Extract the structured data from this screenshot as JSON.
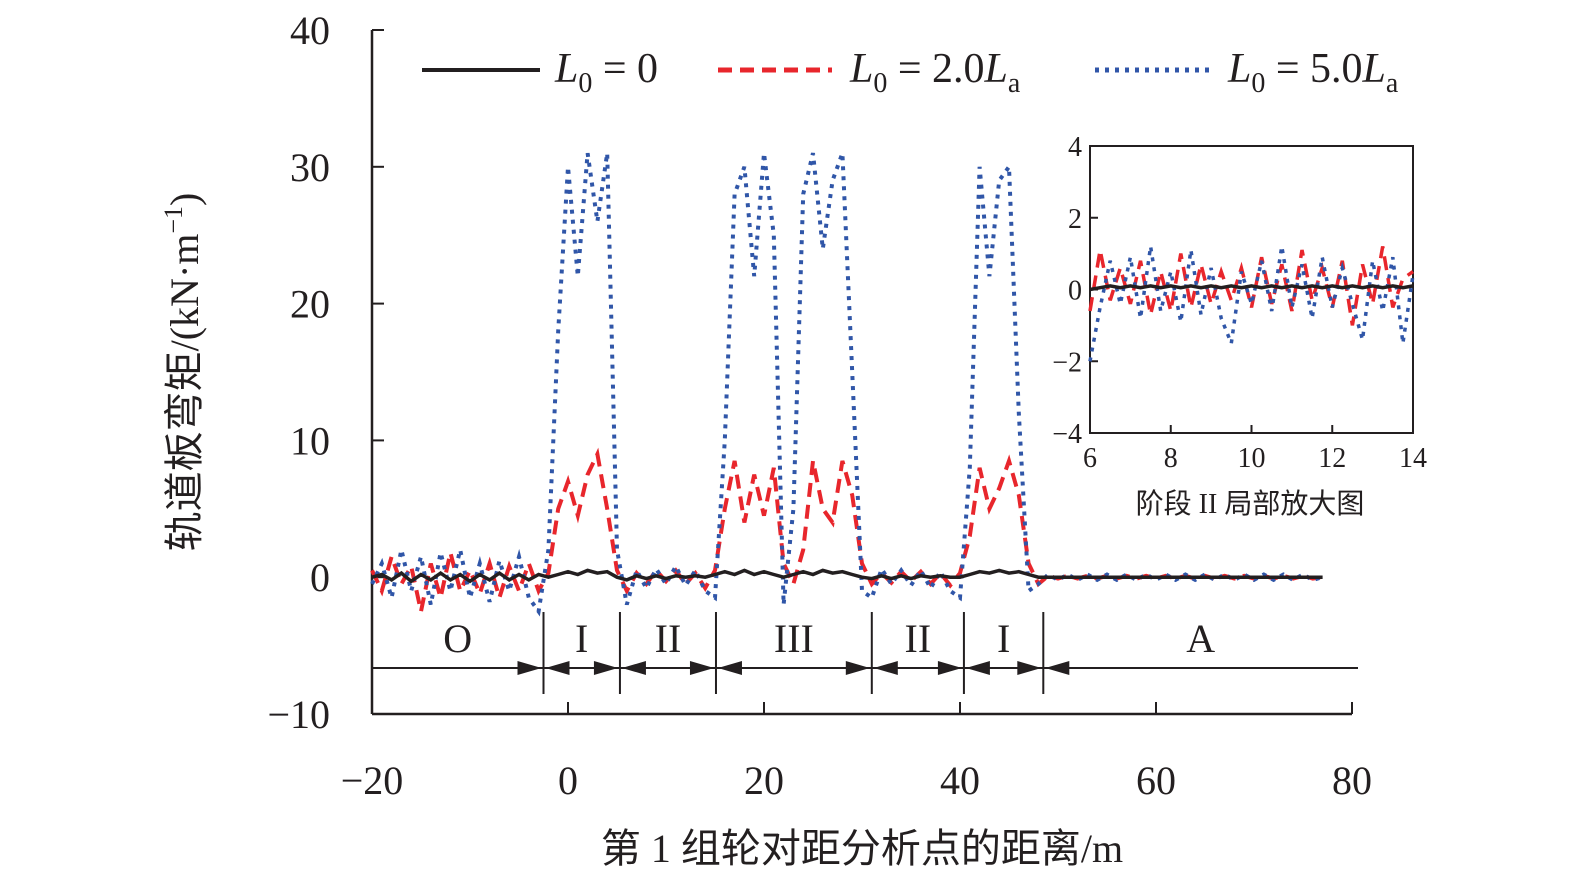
{
  "chart_data": {
    "type": "line",
    "xlabel": "第 1 组轮对距分析点的距离/m",
    "ylabel": "轨道板弯矩/(kN·m",
    "ylabel_sup": "−1",
    "ylabel_end": ")",
    "xlim": [
      -20,
      80
    ],
    "ylim": [
      -10,
      40
    ],
    "xticks": [
      -20,
      0,
      20,
      40,
      60,
      80
    ],
    "xtick_labels": [
      "−20",
      "0",
      "20",
      "40",
      "60",
      "80"
    ],
    "yticks": [
      -10,
      0,
      10,
      20,
      30,
      40
    ],
    "ytick_labels": [
      "−10",
      "0",
      "10",
      "20",
      "30",
      "40"
    ],
    "legend": [
      {
        "var": "L",
        "sub": "0",
        "eq": " = 0",
        "var2": "",
        "sub2": "",
        "color": "#231f20",
        "dash": "solid"
      },
      {
        "var": "L",
        "sub": "0",
        "eq": " = 2.0",
        "var2": "L",
        "sub2": "a",
        "color": "#e8262c",
        "dash": "dashed"
      },
      {
        "var": "L",
        "sub": "0",
        "eq": " = 5.0",
        "var2": "L",
        "sub2": "a",
        "color": "#3056a8",
        "dash": "dotted"
      }
    ],
    "legend_position": "top",
    "regions": [
      {
        "label": "O",
        "from": -20,
        "to": -2.5
      },
      {
        "label": "I",
        "from": -2.5,
        "to": 5.3
      },
      {
        "label": "II",
        "from": 5.3,
        "to": 15.1
      },
      {
        "label": "III",
        "from": 15.1,
        "to": 31
      },
      {
        "label": "II",
        "from": 31,
        "to": 40.4
      },
      {
        "label": "I",
        "from": 40.4,
        "to": 48.5
      },
      {
        "label": "A",
        "from": 48.5,
        "to": 81
      }
    ],
    "x_start": -20,
    "x_step": 1,
    "series": [
      {
        "name": "L0 = 0",
        "color": "#231f20",
        "values": [
          0,
          0.2,
          -0.2,
          0.3,
          -0.3,
          0.2,
          -0.2,
          0.3,
          -0.2,
          0.2,
          -0.3,
          0.2,
          -0.2,
          0.3,
          -0.2,
          0.2,
          -0.2,
          0.2,
          0,
          0.2,
          0.4,
          0.2,
          0.5,
          0.3,
          0.4,
          0,
          -0.2,
          0.1,
          -0.1,
          0.1,
          -0.1,
          0.1,
          0,
          0.1,
          0,
          0.2,
          0.4,
          0.2,
          0.5,
          0.2,
          0.4,
          0.2,
          0,
          0.2,
          0.4,
          0.2,
          0.5,
          0.3,
          0.4,
          0.2,
          0,
          -0.1,
          0.1,
          -0.1,
          0.1,
          -0.1,
          0.1,
          0,
          0.1,
          0,
          0,
          0.2,
          0.4,
          0.3,
          0.5,
          0.3,
          0.4,
          0.2,
          0,
          0,
          0,
          0,
          0,
          0,
          0,
          0,
          0,
          0,
          0,
          0,
          0,
          0,
          0,
          0,
          0,
          0,
          0,
          0,
          0,
          0,
          0,
          0,
          0,
          0,
          0,
          0,
          0,
          0
        ]
      },
      {
        "name": "L0 = 2.0La",
        "color": "#e8262c",
        "values": [
          0.5,
          -1,
          1.5,
          -0.5,
          0.8,
          -2.5,
          1,
          -1.5,
          1.8,
          -1,
          0.5,
          -1.2,
          1,
          -1.5,
          0.8,
          -1,
          1,
          -1,
          0.3,
          5,
          7,
          4.5,
          7.5,
          9,
          5,
          0.5,
          -1,
          0.3,
          -0.5,
          0.5,
          -0.3,
          0.5,
          -0.5,
          0.3,
          -0.8,
          0.5,
          5,
          8.5,
          4,
          7.5,
          4.5,
          8,
          1,
          -0.5,
          2,
          8.5,
          5,
          4,
          8.5,
          6,
          1,
          -0.5,
          0.3,
          -0.4,
          0.4,
          -0.3,
          0.4,
          -0.5,
          0.3,
          -0.6,
          0.3,
          3,
          8,
          5,
          6.5,
          8.5,
          6,
          1,
          -0.5,
          0.1,
          -0.1,
          0.1,
          -0.1,
          0.1,
          -0.1,
          0.1,
          -0.1,
          0.1,
          -0.1,
          0.1,
          -0.1,
          0.1,
          -0.1,
          0.1,
          -0.1,
          0.1,
          -0.1,
          0.1,
          -0.1,
          0.1,
          -0.1,
          0.1,
          -0.1,
          0.1,
          -0.1,
          0.1,
          -0.1,
          0
        ]
      },
      {
        "name": "L0 = 5.0La",
        "color": "#3056a8",
        "values": [
          -0.5,
          1,
          -1.5,
          2,
          -1,
          1.5,
          -2,
          1.8,
          -1,
          2,
          -1.5,
          1,
          -1.8,
          1.2,
          -1,
          1.5,
          -1.5,
          -2.5,
          2,
          18,
          30,
          22,
          31,
          26,
          31,
          2,
          -2,
          0.5,
          -0.8,
          0.6,
          -0.5,
          0.8,
          -0.6,
          0.5,
          -1,
          -1.5,
          10,
          28,
          30,
          22,
          31,
          25,
          -2,
          5,
          28,
          31,
          24,
          29,
          31,
          15,
          -1,
          -1.5,
          0.6,
          -0.5,
          0.5,
          -0.6,
          0.5,
          -0.8,
          0.4,
          -1,
          -1.5,
          8,
          30,
          22,
          29,
          30,
          12,
          -1,
          -0.5,
          0.2,
          -0.2,
          0.2,
          -0.2,
          0.2,
          -0.2,
          0.2,
          -0.2,
          0.2,
          -0.2,
          0.2,
          -0.2,
          0.2,
          -0.2,
          0.2,
          -0.2,
          0.2,
          -0.2,
          0.2,
          -0.2,
          0.2,
          -0.2,
          0.2,
          -0.2,
          0.2,
          -0.2,
          0.2,
          -0.2,
          0
        ]
      }
    ],
    "inset": {
      "title": "阶段 II 局部放大图",
      "xlim": [
        6,
        14
      ],
      "ylim": [
        -4,
        4
      ],
      "xticks": [
        6,
        8,
        10,
        12,
        14
      ],
      "xtick_labels": [
        "6",
        "8",
        "10",
        "12",
        "14"
      ],
      "yticks": [
        -4,
        -2,
        0,
        2,
        4
      ],
      "ytick_labels": [
        "−4",
        "−2",
        "0",
        "2",
        "4"
      ],
      "x_start": 6,
      "x_step": 0.25,
      "series": [
        {
          "color": "#231f20",
          "values": [
            0,
            0.05,
            0.1,
            0.05,
            0.1,
            0.05,
            0.1,
            0.05,
            0.1,
            0.05,
            0.1,
            0.05,
            0.1,
            0.05,
            0.1,
            0.05,
            0.1,
            0.05,
            0.1,
            0.05,
            0.1,
            0.05,
            0.1,
            0.05,
            0.1,
            0.05,
            0.1,
            0.05,
            0.1,
            0.05,
            0.1,
            0.05,
            0.1
          ]
        },
        {
          "color": "#e8262c",
          "values": [
            -0.6,
            1.1,
            -0.3,
            0.6,
            -0.4,
            0.8,
            -0.7,
            0.5,
            -0.6,
            1,
            -0.5,
            0.7,
            -0.4,
            0.5,
            -0.3,
            0.6,
            -0.5,
            0.9,
            -0.4,
            0.7,
            -0.6,
            1.1,
            -0.3,
            0.6,
            -0.5,
            0.8,
            -1,
            0.7,
            -0.4,
            1.2,
            -0.5,
            0.3,
            0.5
          ]
        },
        {
          "color": "#3056a8",
          "values": [
            -2,
            -0.5,
            0.8,
            -0.4,
            0.9,
            -0.8,
            1.2,
            -0.6,
            0.5,
            -0.9,
            1.1,
            -0.7,
            0.6,
            -0.8,
            -1.5,
            0.5,
            -0.4,
            0.8,
            -0.6,
            1.2,
            -0.5,
            0.7,
            -0.8,
            0.9,
            -0.5,
            0.6,
            -0.4,
            -1.4,
            0.8,
            -0.6,
            0.9,
            -1.5,
            0.4
          ]
        }
      ]
    }
  }
}
